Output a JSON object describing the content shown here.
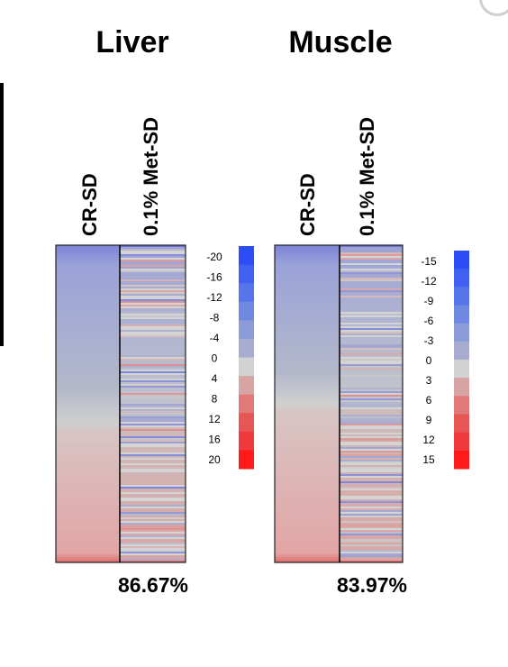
{
  "chart_data": [
    {
      "type": "heatmap",
      "title": "Liver",
      "columns": [
        "CR-SD",
        "0.1% Met-SD"
      ],
      "scale_labels": [
        "-20",
        "-16",
        "-12",
        "-8",
        "-4",
        "0",
        "4",
        "8",
        "12",
        "16",
        "20"
      ],
      "percentage": "86.67%"
    },
    {
      "type": "heatmap",
      "title": "Muscle",
      "columns": [
        "CR-SD",
        "0.1% Met-SD"
      ],
      "scale_labels": [
        "-15",
        "-12",
        "-9",
        "-6",
        "-3",
        "0",
        "3",
        "6",
        "9",
        "12",
        "15"
      ],
      "percentage": "83.97%"
    }
  ],
  "colors": {
    "scale": [
      "#2a4df5",
      "#3f60f0",
      "#5675ea",
      "#6f88e2",
      "#8b9ad8",
      "#a7acd0",
      "#d2d2d2",
      "#d7a3a3",
      "#e07a7a",
      "#e85555",
      "#f03a3a",
      "#ff1a1a"
    ],
    "neutral": "#cfcfcf",
    "blue_end": "#6f78d6",
    "red_end": "#e06a6a"
  }
}
